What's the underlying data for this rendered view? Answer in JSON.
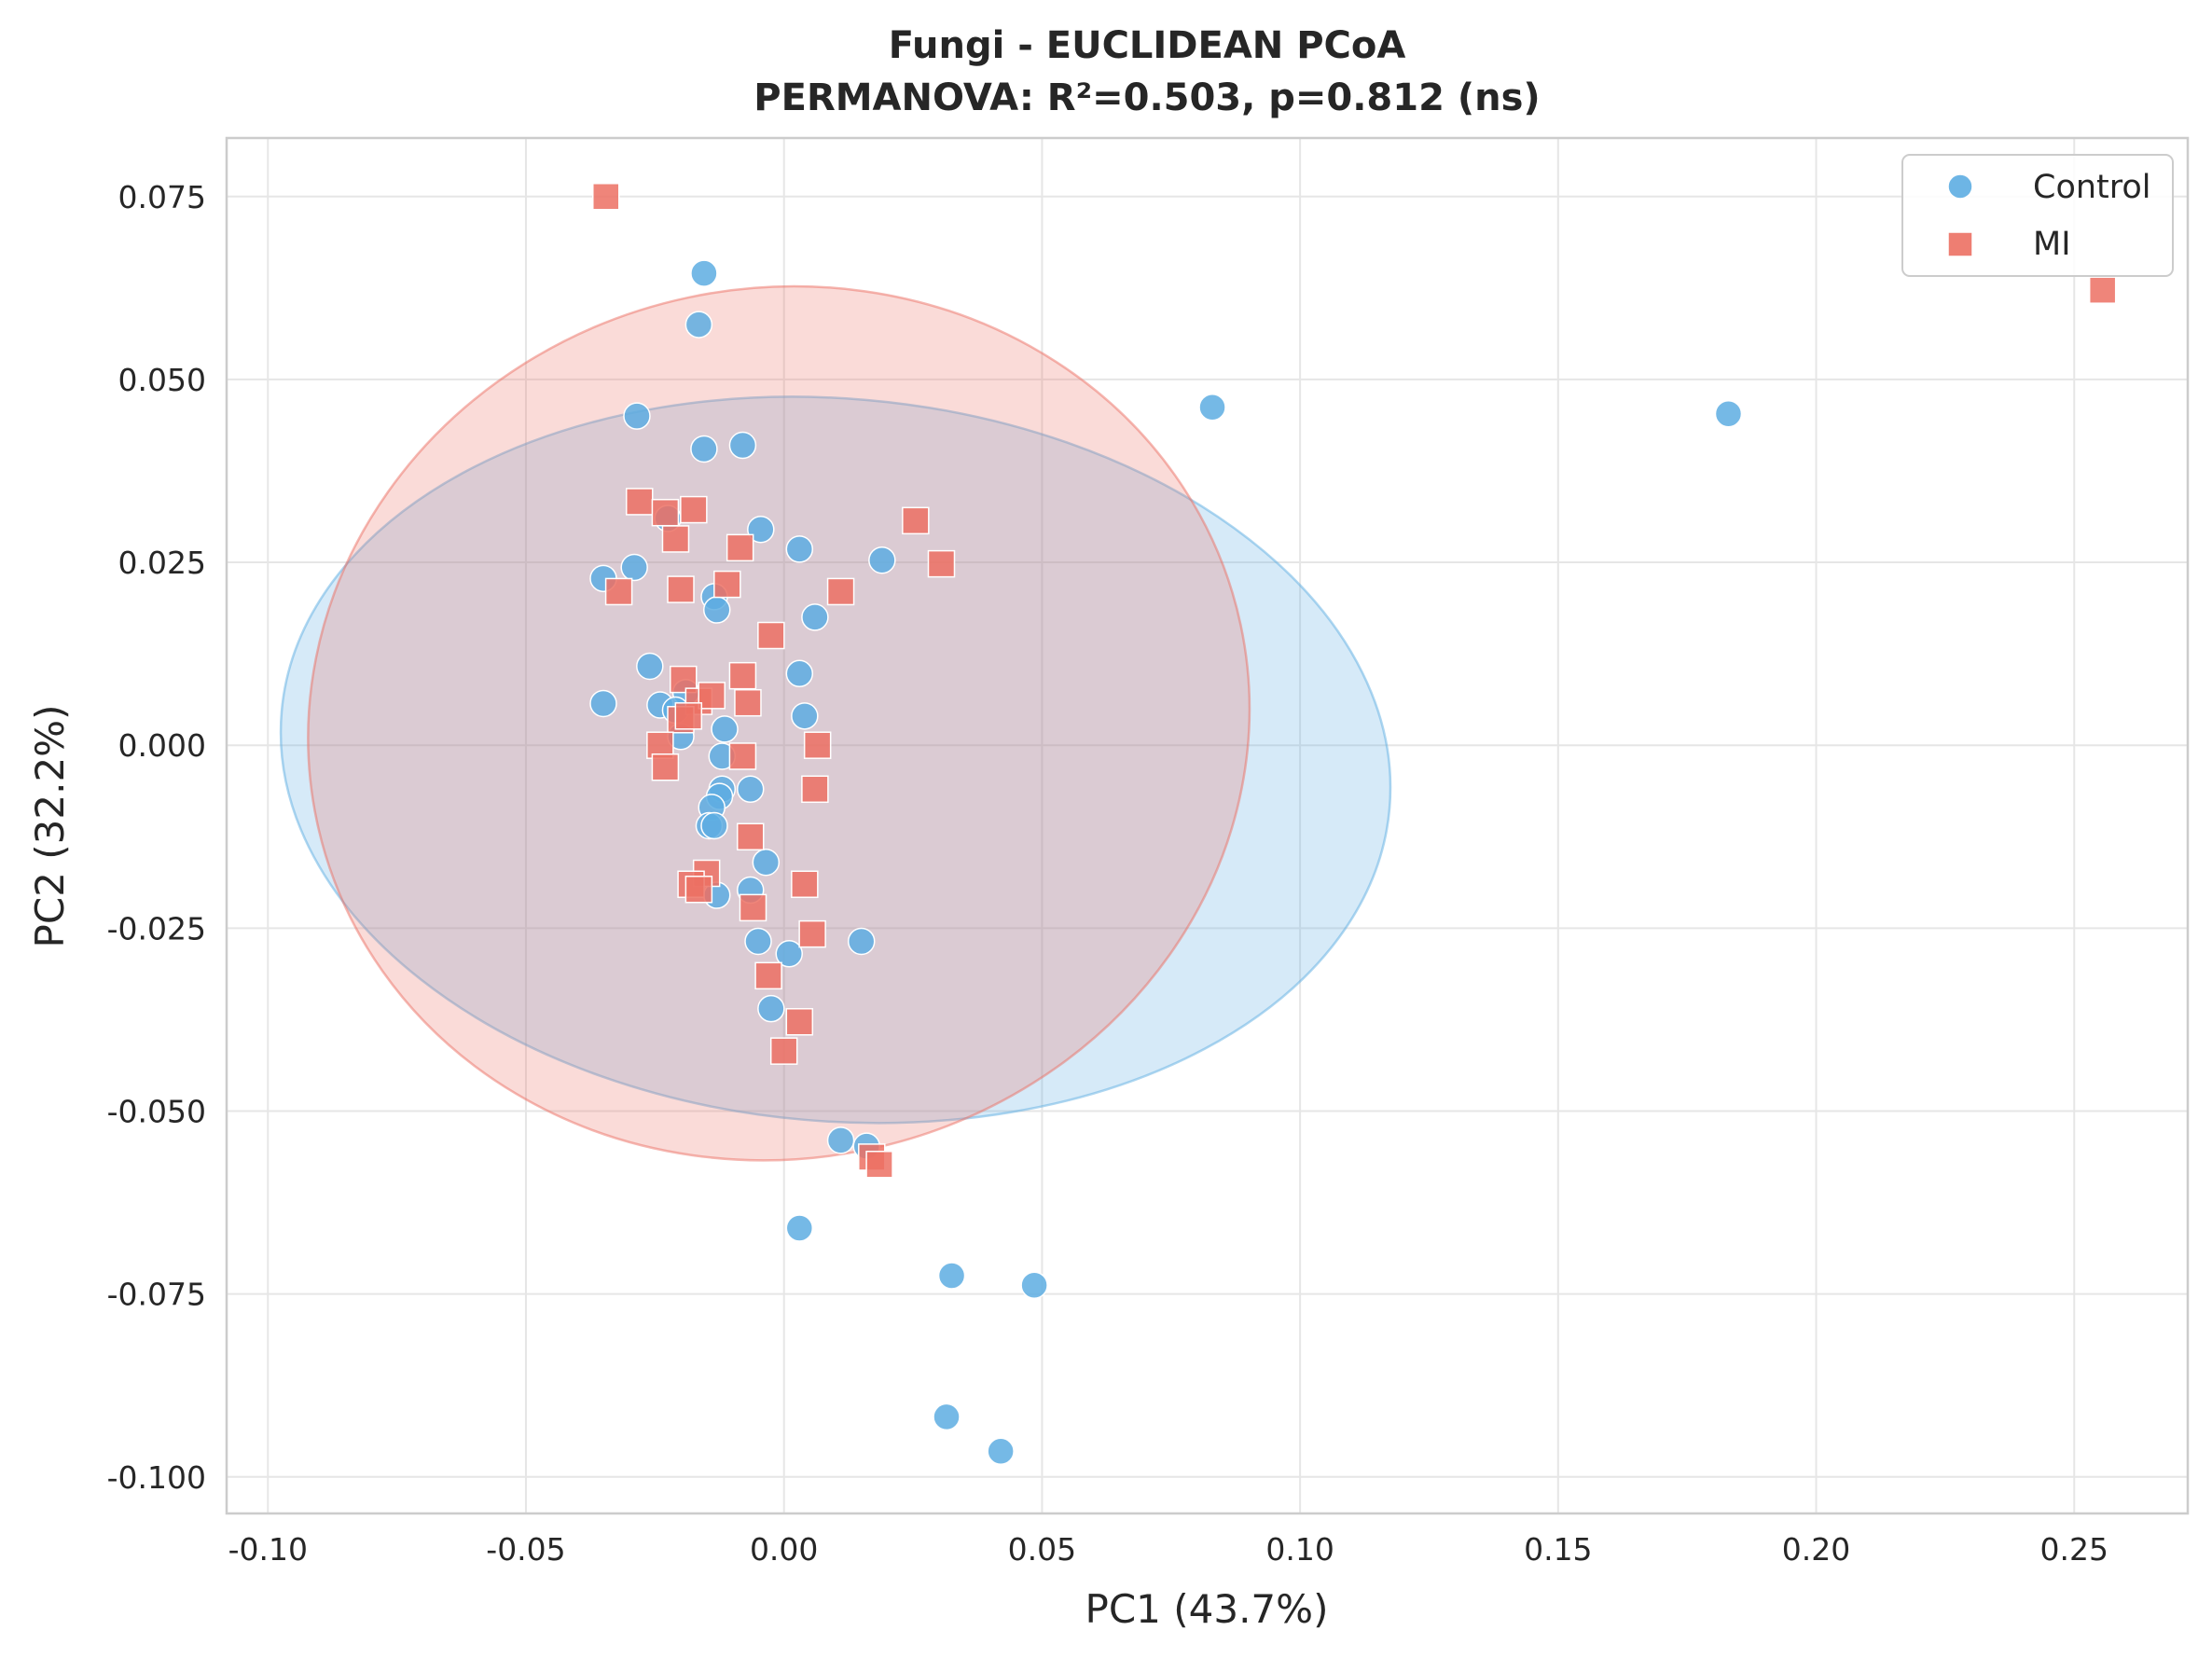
{
  "chart_data": {
    "type": "scatter",
    "title": "Fungi - EUCLIDEAN PCoA",
    "subtitle": "PERMANOVA: R²=0.503, p=0.812 (ns)",
    "xlabel": "PC1 (43.7%)",
    "ylabel": "PC2 (32.2%)",
    "xlim": [
      -0.108,
      0.272
    ],
    "ylim": [
      -0.105,
      0.083
    ],
    "xticks": [
      -0.1,
      -0.05,
      0.0,
      0.05,
      0.1,
      0.15,
      0.2,
      0.25
    ],
    "xtick_labels": [
      "-0.10",
      "-0.05",
      "0.00",
      "0.05",
      "0.10",
      "0.15",
      "0.20",
      "0.25"
    ],
    "yticks": [
      -0.1,
      -0.075,
      -0.05,
      -0.025,
      0.0,
      0.025,
      0.05,
      0.075
    ],
    "ytick_labels": [
      "-0.100",
      "-0.075",
      "-0.050",
      "-0.025",
      "0.000",
      "0.025",
      "0.050",
      "0.075"
    ],
    "grid": true,
    "legend_position": "top-right",
    "series": [
      {
        "name": "Control",
        "marker": "circle",
        "color": "#5DADE2",
        "points": [
          [
            -0.0155,
            0.0645
          ],
          [
            -0.0165,
            0.0575
          ],
          [
            -0.0285,
            0.045
          ],
          [
            -0.0155,
            0.0405
          ],
          [
            -0.008,
            0.041
          ],
          [
            -0.0225,
            0.031
          ],
          [
            -0.0045,
            0.0295
          ],
          [
            0.003,
            0.0268
          ],
          [
            0.019,
            0.0253
          ],
          [
            -0.035,
            0.0228
          ],
          [
            -0.029,
            0.0243
          ],
          [
            -0.0135,
            0.0203
          ],
          [
            -0.013,
            0.0185
          ],
          [
            0.006,
            0.0175
          ],
          [
            -0.026,
            0.0108
          ],
          [
            0.003,
            0.0098
          ],
          [
            -0.035,
            0.0057
          ],
          [
            -0.024,
            0.0055
          ],
          [
            -0.019,
            0.0072
          ],
          [
            -0.021,
            0.0048
          ],
          [
            0.004,
            0.004
          ],
          [
            -0.02,
            0.0012
          ],
          [
            -0.0115,
            0.0022
          ],
          [
            -0.012,
            -0.0015
          ],
          [
            -0.012,
            -0.006
          ],
          [
            -0.0125,
            -0.007
          ],
          [
            -0.0065,
            -0.006
          ],
          [
            -0.014,
            -0.0085
          ],
          [
            -0.0145,
            -0.011
          ],
          [
            -0.0135,
            -0.011
          ],
          [
            -0.0035,
            -0.016
          ],
          [
            -0.0065,
            -0.0198
          ],
          [
            -0.013,
            -0.0205
          ],
          [
            -0.005,
            -0.0268
          ],
          [
            0.015,
            -0.0268
          ],
          [
            0.001,
            -0.0285
          ],
          [
            -0.0025,
            -0.036
          ],
          [
            0.011,
            -0.054
          ],
          [
            0.016,
            -0.0548
          ],
          [
            0.003,
            -0.066
          ],
          [
            0.0325,
            -0.0725
          ],
          [
            0.0485,
            -0.0738
          ],
          [
            0.0315,
            -0.0918
          ],
          [
            0.042,
            -0.0965
          ],
          [
            0.083,
            0.0462
          ],
          [
            0.183,
            0.0453
          ]
        ]
      },
      {
        "name": "MI",
        "marker": "square",
        "color": "#EC7063",
        "points": [
          [
            -0.0345,
            0.075
          ],
          [
            -0.028,
            0.0333
          ],
          [
            -0.023,
            0.0318
          ],
          [
            -0.0175,
            0.0322
          ],
          [
            -0.021,
            0.0282
          ],
          [
            -0.0085,
            0.027
          ],
          [
            0.0255,
            0.0307
          ],
          [
            0.0305,
            0.0248
          ],
          [
            -0.032,
            0.021
          ],
          [
            -0.02,
            0.0213
          ],
          [
            -0.011,
            0.022
          ],
          [
            0.011,
            0.021
          ],
          [
            -0.0025,
            0.015
          ],
          [
            -0.0195,
            0.009
          ],
          [
            -0.008,
            0.0095
          ],
          [
            -0.0165,
            0.006
          ],
          [
            -0.014,
            0.0068
          ],
          [
            -0.007,
            0.0058
          ],
          [
            -0.02,
            0.0035
          ],
          [
            -0.0185,
            0.004
          ],
          [
            -0.024,
            0.0
          ],
          [
            -0.023,
            -0.003
          ],
          [
            -0.008,
            -0.0015
          ],
          [
            0.0065,
            0.0
          ],
          [
            0.006,
            -0.006
          ],
          [
            -0.0065,
            -0.0125
          ],
          [
            -0.015,
            -0.0175
          ],
          [
            -0.018,
            -0.019
          ],
          [
            -0.0165,
            -0.0197
          ],
          [
            0.004,
            -0.019
          ],
          [
            -0.006,
            -0.0222
          ],
          [
            0.0055,
            -0.0258
          ],
          [
            -0.003,
            -0.0315
          ],
          [
            0.003,
            -0.0378
          ],
          [
            0.0,
            -0.0418
          ],
          [
            0.017,
            -0.0563
          ],
          [
            0.0185,
            -0.0573
          ],
          [
            0.2555,
            0.0622
          ]
        ]
      }
    ],
    "ellipses": [
      {
        "series": "Control",
        "center": [
          0.01,
          -0.002
        ],
        "semi_axes": [
          0.07,
          0.076
        ],
        "rotation_deg": 85,
        "color": "#5DADE2"
      },
      {
        "series": "MI",
        "center": [
          -0.001,
          0.003
        ],
        "semi_axes": [
          0.0915,
          0.0595
        ],
        "rotation_deg": 12,
        "color": "#EC7063"
      }
    ]
  }
}
